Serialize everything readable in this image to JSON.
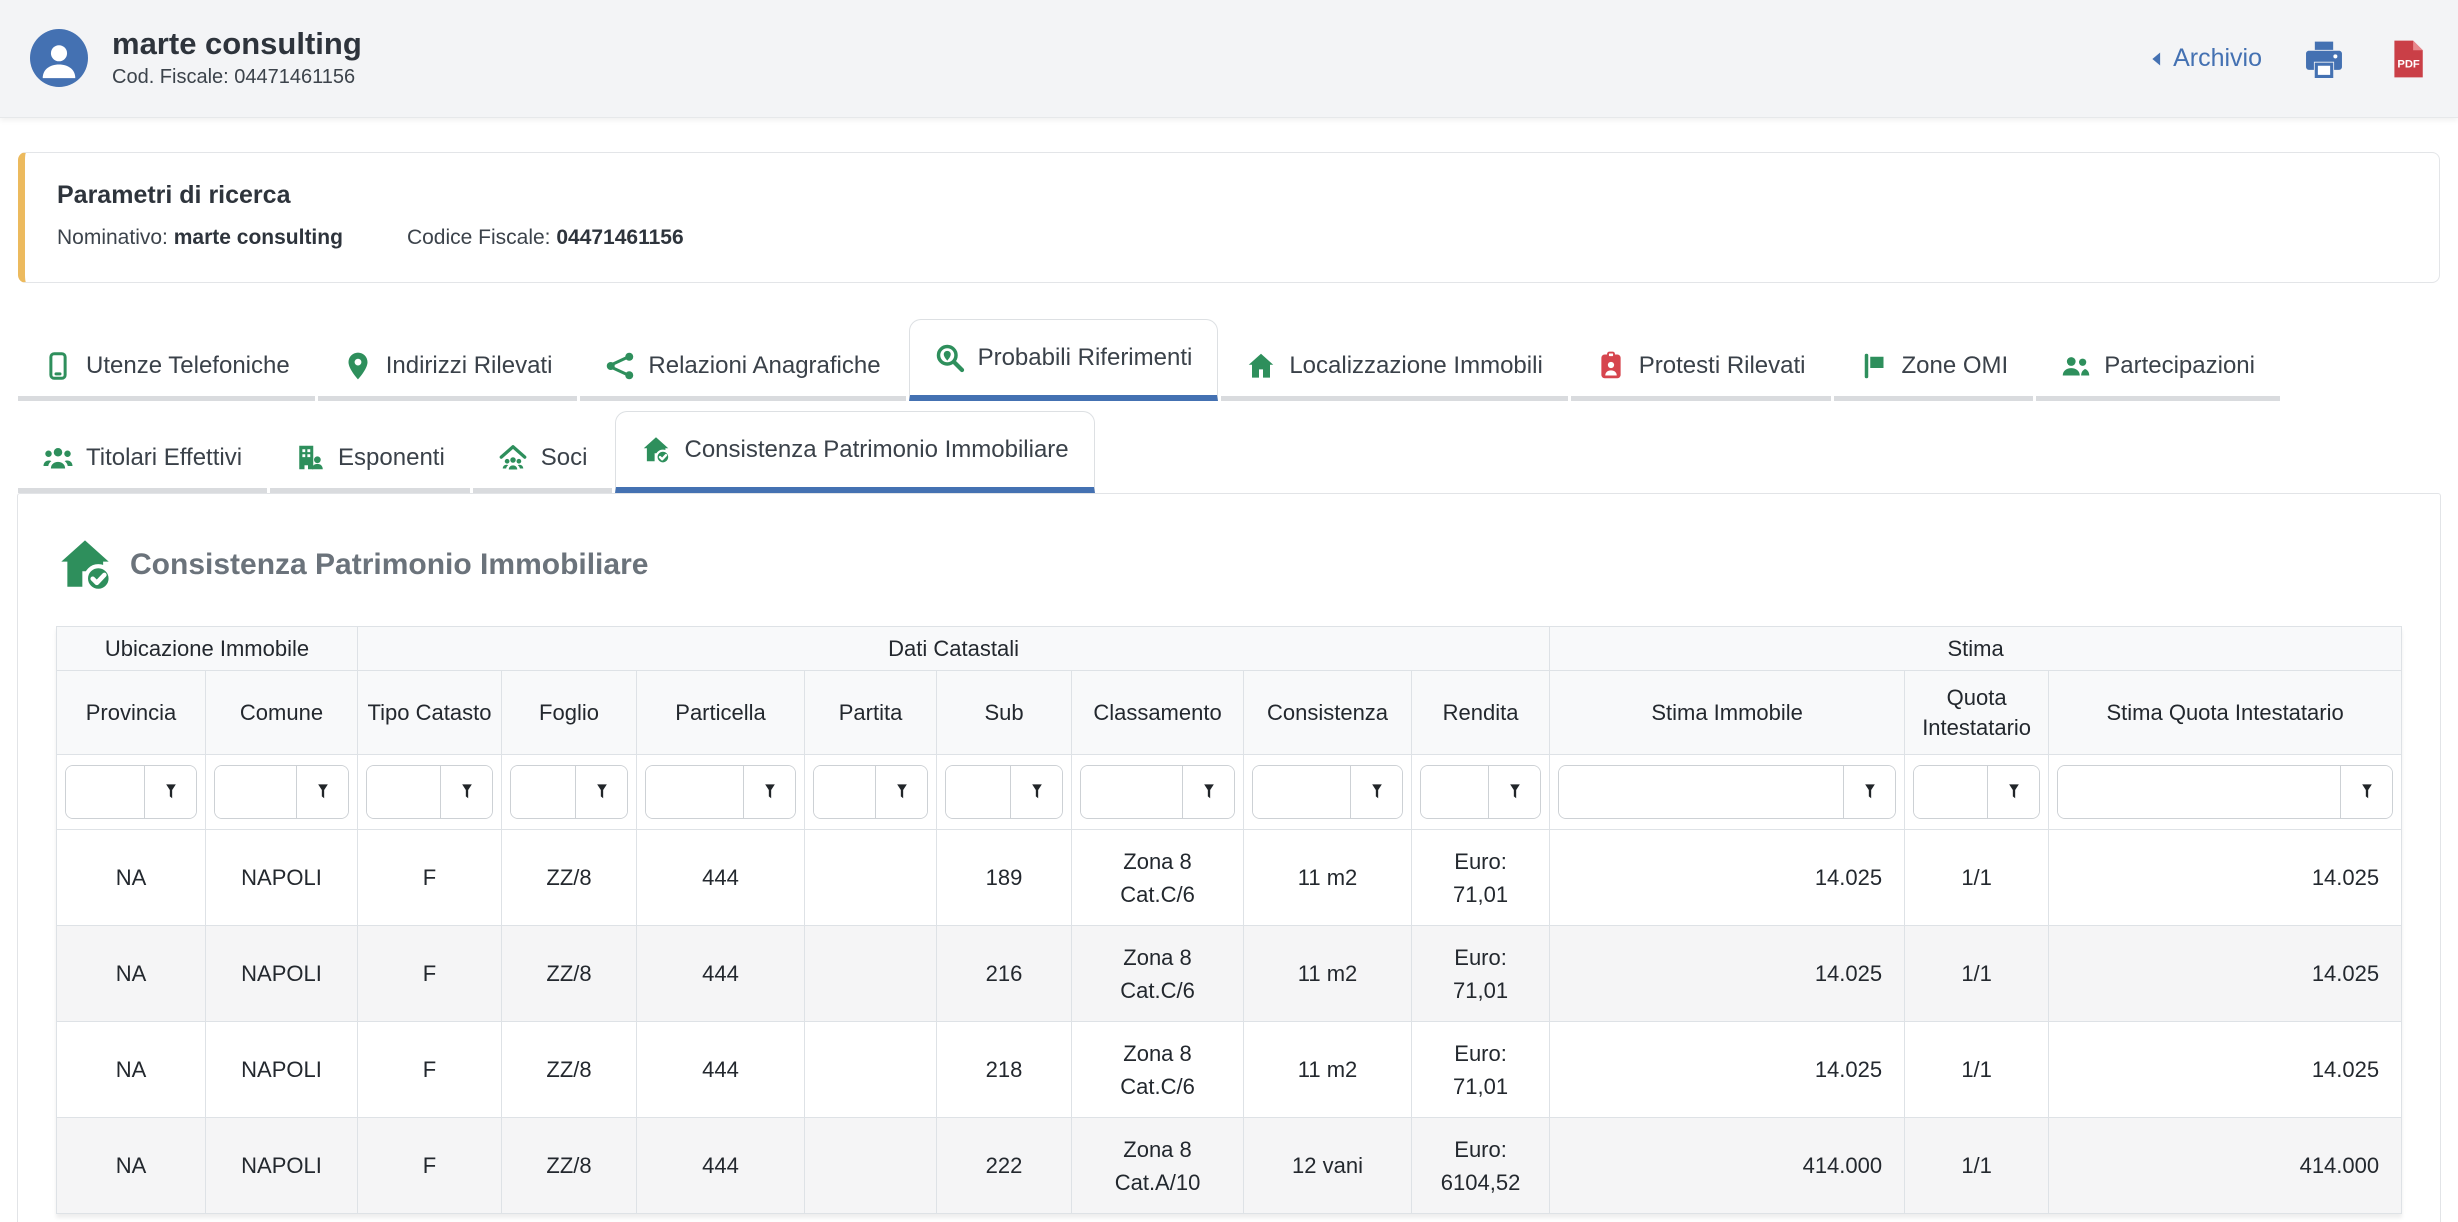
{
  "theme": {
    "accent_blue": "#4471b2",
    "green": "#2e8f5c",
    "red": "#d6454e",
    "pdf_red": "#ca3f47",
    "orange": "#ecba5e"
  },
  "header": {
    "title": "marte consulting",
    "subtitle": "Cod. Fiscale: 04471461156",
    "archive_label": "Archivio"
  },
  "search_params": {
    "title": "Parametri di ricerca",
    "fields": [
      {
        "label": "Nominativo:",
        "value": "marte consulting"
      },
      {
        "label": "Codice Fiscale:",
        "value": "04471461156"
      }
    ]
  },
  "tabs": {
    "row1": [
      {
        "label": "Utenze Telefoniche",
        "icon": "phone-icon",
        "color": "green",
        "active": false
      },
      {
        "label": "Indirizzi Rilevati",
        "icon": "map-marker-icon",
        "color": "green",
        "active": false
      },
      {
        "label": "Relazioni Anagrafiche",
        "icon": "network-icon",
        "color": "green",
        "active": false
      },
      {
        "label": "Probabili Riferimenti",
        "icon": "search-location-icon",
        "color": "green",
        "active": true
      },
      {
        "label": "Localizzazione Immobili",
        "icon": "home-icon",
        "color": "green",
        "active": false
      },
      {
        "label": "Protesti Rilevati",
        "icon": "id-badge-icon",
        "color": "red",
        "active": false
      },
      {
        "label": "Zone OMI",
        "icon": "map-sign-icon",
        "color": "green",
        "active": false
      },
      {
        "label": "Partecipazioni",
        "icon": "users-icon",
        "color": "green",
        "active": false
      }
    ],
    "row2": [
      {
        "label": "Titolari Effettivi",
        "icon": "users-three-icon",
        "color": "green",
        "active": false
      },
      {
        "label": "Esponenti",
        "icon": "building-user-icon",
        "color": "green",
        "active": false
      },
      {
        "label": "Soci",
        "icon": "house-users-icon",
        "color": "green",
        "active": false
      },
      {
        "label": "Consistenza Patrimonio Immobiliare",
        "icon": "house-check-icon",
        "color": "green",
        "active": true
      }
    ]
  },
  "section": {
    "title": "Consistenza Patrimonio Immobiliare",
    "icon": "house-check-icon"
  },
  "table": {
    "groups": [
      {
        "label": "Ubicazione Immobile",
        "span": 2
      },
      {
        "label": "Dati Catastali",
        "span": 8
      },
      {
        "label": "Stima",
        "span": 3
      }
    ],
    "columns": [
      "Provincia",
      "Comune",
      "Tipo Catasto",
      "Foglio",
      "Particella",
      "Partita",
      "Sub",
      "Classamento",
      "Consistenza",
      "Rendita",
      "Stima Immobile",
      "Quota Intestatario",
      "Stima Quota Intestatario"
    ],
    "filter_value": "",
    "rows": [
      [
        "NA",
        "NAPOLI",
        "F",
        "ZZ/8",
        "444",
        "",
        "189",
        "Zona 8\nCat.C/6",
        "11 m2",
        "Euro:\n71,01",
        "14.025",
        "1/1",
        "14.025"
      ],
      [
        "NA",
        "NAPOLI",
        "F",
        "ZZ/8",
        "444",
        "",
        "216",
        "Zona 8\nCat.C/6",
        "11 m2",
        "Euro:\n71,01",
        "14.025",
        "1/1",
        "14.025"
      ],
      [
        "NA",
        "NAPOLI",
        "F",
        "ZZ/8",
        "444",
        "",
        "218",
        "Zona 8\nCat.C/6",
        "11 m2",
        "Euro:\n71,01",
        "14.025",
        "1/1",
        "14.025"
      ],
      [
        "NA",
        "NAPOLI",
        "F",
        "ZZ/8",
        "444",
        "",
        "222",
        "Zona 8\nCat.A/10",
        "12 vani",
        "Euro:\n6104,52",
        "414.000",
        "1/1",
        "414.000"
      ]
    ]
  }
}
